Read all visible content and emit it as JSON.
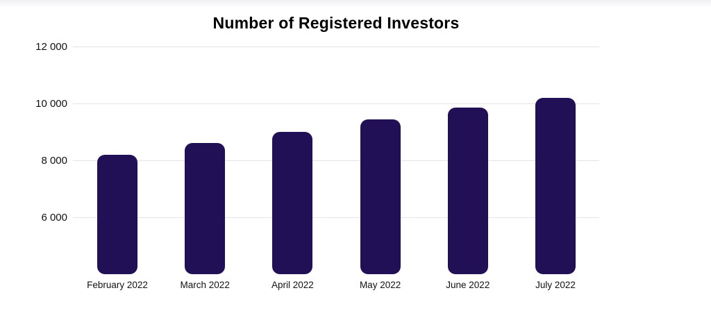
{
  "chart_data": {
    "type": "bar",
    "title": "Number of Registered Investors",
    "categories": [
      "February 2022",
      "March 2022",
      "April 2022",
      "May 2022",
      "June 2022",
      "July 2022"
    ],
    "values": [
      8200,
      8600,
      9000,
      9450,
      9850,
      10200
    ],
    "xlabel": "",
    "ylabel": "",
    "y_axis": {
      "ticks": [
        {
          "value": 12000,
          "label": "12 000"
        },
        {
          "value": 10000,
          "label": "10 000"
        },
        {
          "value": 8000,
          "label": "8 000"
        },
        {
          "value": 6000,
          "label": "6 000"
        }
      ]
    },
    "ylim": [
      4000,
      12400
    ],
    "baseline_value": 4000,
    "grid": "horizontal",
    "legend": "none",
    "bar_color": "#221056",
    "gridline_color": "#e4e4e6",
    "title_color": "#000000",
    "tick_label_color": "#111111"
  }
}
